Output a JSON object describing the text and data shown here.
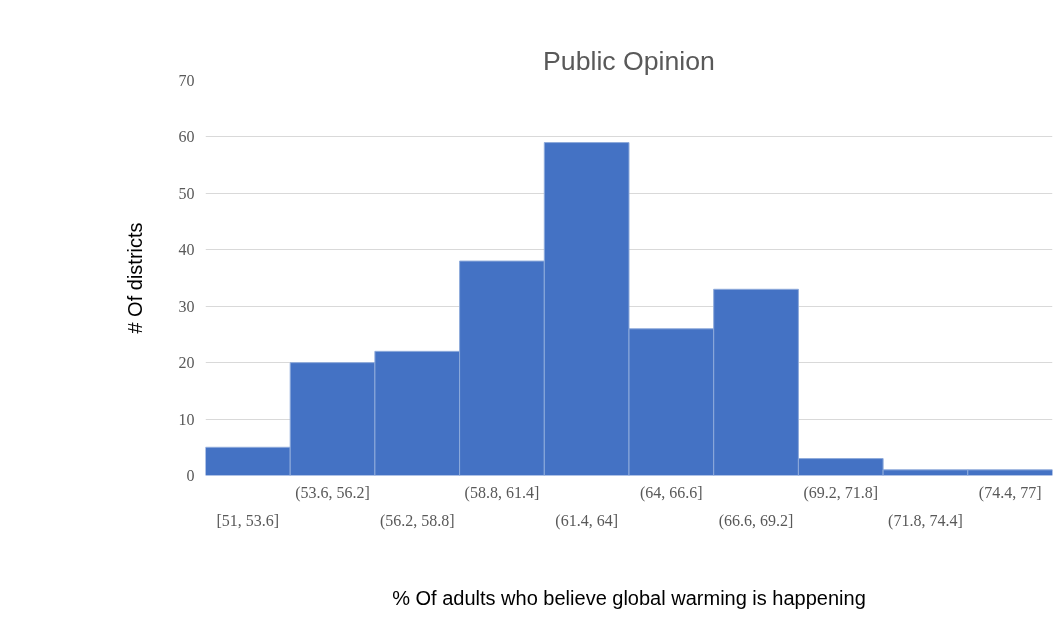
{
  "chart_data": {
    "type": "bar",
    "title": "Public Opinion",
    "xlabel": "% Of adults who believe global warming is happening",
    "ylabel": "# Of districts",
    "categories": [
      "[51, 53.6]",
      "(53.6, 56.2]",
      "(56.2, 58.8]",
      "(58.8, 61.4]",
      "(61.4, 64]",
      "(64, 66.6]",
      "(66.6, 69.2]",
      "(69.2, 71.8]",
      "(71.8, 74.4]",
      "(74.4, 77]"
    ],
    "values": [
      5,
      20,
      22,
      38,
      59,
      26,
      33,
      3,
      1,
      1
    ],
    "color": "#4472c4",
    "ylim": [
      0,
      70
    ],
    "yticks": [
      0,
      10,
      20,
      30,
      40,
      50,
      60,
      70
    ],
    "grid": "y"
  }
}
